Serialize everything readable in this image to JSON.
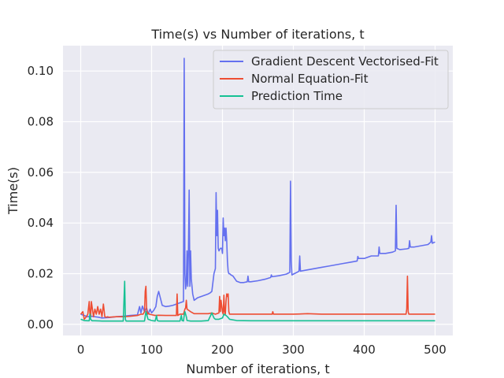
{
  "chart_data": {
    "type": "line",
    "title": "Time(s) vs Number of iterations, t",
    "xlabel": "Number of iterations, t",
    "ylabel": "Time(s)",
    "xlim": [
      -25,
      525
    ],
    "ylim": [
      -0.0044,
      0.11
    ],
    "xticks": [
      0,
      100,
      200,
      300,
      400,
      500
    ],
    "xtick_labels": [
      "0",
      "100",
      "200",
      "300",
      "400",
      "500"
    ],
    "yticks": [
      0.0,
      0.02,
      0.04,
      0.06,
      0.08,
      0.1
    ],
    "ytick_labels": [
      "0.00",
      "0.02",
      "0.04",
      "0.06",
      "0.08",
      "0.10"
    ],
    "grid": true,
    "legend_position": "top-right",
    "series": [
      {
        "name": "Gradient Descent Vectorised-Fit",
        "color": "#6470ef",
        "x": [
          0,
          5,
          10,
          15,
          20,
          25,
          30,
          40,
          50,
          60,
          70,
          80,
          83,
          85,
          87,
          90,
          93,
          95,
          98,
          100,
          103,
          106,
          108,
          110,
          115,
          120,
          125,
          130,
          135,
          140,
          143,
          145,
          146,
          147,
          148,
          149,
          150,
          151,
          152,
          153,
          154,
          155,
          156,
          158,
          160,
          165,
          170,
          175,
          180,
          183,
          185,
          188,
          190,
          191,
          192,
          193,
          194,
          195,
          197,
          199,
          200,
          201,
          202,
          203,
          204,
          205,
          206,
          207,
          208,
          209,
          210,
          212,
          215,
          220,
          225,
          230,
          235,
          236,
          237,
          240,
          250,
          260,
          268,
          269,
          270,
          280,
          290,
          295,
          296,
          297,
          298,
          300,
          305,
          308,
          309,
          310,
          320,
          330,
          340,
          350,
          360,
          370,
          380,
          390,
          391,
          392,
          400,
          410,
          420,
          421,
          422,
          430,
          440,
          444,
          445,
          446,
          450,
          460,
          463,
          464,
          465,
          470,
          480,
          490,
          494,
          495,
          496,
          500
        ],
        "y": [
          0.004,
          0.0035,
          0.003,
          0.0032,
          0.003,
          0.0028,
          0.0025,
          0.0027,
          0.003,
          0.0032,
          0.0035,
          0.0037,
          0.007,
          0.0045,
          0.0072,
          0.005,
          0.0065,
          0.004,
          0.006,
          0.0045,
          0.0055,
          0.007,
          0.011,
          0.013,
          0.0075,
          0.007,
          0.0072,
          0.0075,
          0.008,
          0.0085,
          0.0088,
          0.009,
          0.105,
          0.02,
          0.014,
          0.016,
          0.029,
          0.015,
          0.029,
          0.053,
          0.015,
          0.029,
          0.018,
          0.012,
          0.0095,
          0.0105,
          0.011,
          0.0115,
          0.012,
          0.0125,
          0.013,
          0.02,
          0.022,
          0.052,
          0.035,
          0.045,
          0.03,
          0.029,
          0.03,
          0.03,
          0.028,
          0.042,
          0.035,
          0.038,
          0.033,
          0.038,
          0.033,
          0.025,
          0.021,
          0.02,
          0.02,
          0.0195,
          0.019,
          0.017,
          0.0165,
          0.0165,
          0.0168,
          0.019,
          0.0168,
          0.0168,
          0.0172,
          0.0178,
          0.0185,
          0.0195,
          0.0188,
          0.0192,
          0.0198,
          0.0205,
          0.0565,
          0.025,
          0.0195,
          0.0198,
          0.0205,
          0.021,
          0.027,
          0.021,
          0.0215,
          0.022,
          0.0225,
          0.023,
          0.0235,
          0.024,
          0.0245,
          0.025,
          0.0268,
          0.026,
          0.026,
          0.027,
          0.027,
          0.0305,
          0.028,
          0.028,
          0.0285,
          0.029,
          0.047,
          0.03,
          0.0295,
          0.0298,
          0.03,
          0.033,
          0.0305,
          0.0305,
          0.031,
          0.0315,
          0.0325,
          0.035,
          0.032,
          0.0325
        ]
      },
      {
        "name": "Normal Equation-Fit",
        "color": "#ee4d33",
        "x": [
          0,
          3,
          5,
          8,
          10,
          12,
          13,
          14,
          15,
          17,
          18,
          20,
          22,
          24,
          26,
          28,
          30,
          32,
          34,
          36,
          38,
          40,
          50,
          60,
          70,
          80,
          85,
          88,
          90,
          91,
          92,
          93,
          94,
          95,
          97,
          100,
          105,
          110,
          120,
          130,
          135,
          136,
          137,
          140,
          145,
          147,
          148,
          149,
          150,
          155,
          160,
          170,
          180,
          185,
          190,
          195,
          196,
          197,
          198,
          200,
          201,
          202,
          203,
          204,
          205,
          206,
          207,
          208,
          209,
          210,
          220,
          230,
          240,
          260,
          270,
          271,
          272,
          280,
          300,
          320,
          340,
          360,
          380,
          400,
          420,
          440,
          455,
          459,
          460,
          461,
          462,
          463,
          480,
          500
        ],
        "y": [
          0.004,
          0.005,
          0.002,
          0.003,
          0.004,
          0.009,
          0.004,
          0.003,
          0.009,
          0.005,
          0.003,
          0.006,
          0.004,
          0.007,
          0.004,
          0.006,
          0.003,
          0.008,
          0.003,
          0.0028,
          0.003,
          0.0028,
          0.003,
          0.003,
          0.0032,
          0.0035,
          0.004,
          0.004,
          0.005,
          0.013,
          0.015,
          0.006,
          0.004,
          0.0045,
          0.004,
          0.0038,
          0.0035,
          0.0036,
          0.0035,
          0.0035,
          0.0035,
          0.012,
          0.0035,
          0.004,
          0.004,
          0.006,
          0.0065,
          0.0095,
          0.006,
          0.005,
          0.0042,
          0.0042,
          0.0042,
          0.0045,
          0.004,
          0.0045,
          0.011,
          0.005,
          0.0095,
          0.005,
          0.004,
          0.0115,
          0.005,
          0.004,
          0.009,
          0.012,
          0.011,
          0.012,
          0.005,
          0.004,
          0.004,
          0.004,
          0.004,
          0.004,
          0.004,
          0.005,
          0.004,
          0.004,
          0.004,
          0.0042,
          0.004,
          0.004,
          0.004,
          0.004,
          0.004,
          0.004,
          0.004,
          0.004,
          0.006,
          0.019,
          0.005,
          0.004,
          0.004,
          0.004
        ]
      },
      {
        "name": "Prediction Time",
        "color": "#15c193",
        "x": [
          0,
          5,
          10,
          12,
          13,
          14,
          16,
          20,
          30,
          40,
          50,
          60,
          61,
          62,
          63,
          64,
          65,
          70,
          80,
          85,
          90,
          92,
          95,
          100,
          105,
          107,
          108,
          110,
          120,
          130,
          140,
          142,
          143,
          145,
          146,
          147,
          148,
          149,
          150,
          155,
          160,
          170,
          180,
          185,
          188,
          190,
          195,
          200,
          202,
          205,
          207,
          210,
          220,
          240,
          260,
          280,
          300,
          340,
          380,
          420,
          460,
          500
        ],
        "y": [
          0.002,
          0.0015,
          0.0014,
          0.0014,
          0.004,
          0.002,
          0.0014,
          0.0014,
          0.0013,
          0.0013,
          0.0013,
          0.0013,
          0.009,
          0.017,
          0.002,
          0.0013,
          0.0013,
          0.0013,
          0.0013,
          0.0013,
          0.0013,
          0.005,
          0.002,
          0.0015,
          0.0013,
          0.0035,
          0.0015,
          0.0013,
          0.0013,
          0.0013,
          0.0013,
          0.0035,
          0.0015,
          0.0013,
          0.0035,
          0.005,
          0.004,
          0.003,
          0.0015,
          0.0013,
          0.0013,
          0.0013,
          0.0015,
          0.0045,
          0.0025,
          0.002,
          0.002,
          0.0025,
          0.004,
          0.0035,
          0.003,
          0.002,
          0.0015,
          0.0014,
          0.0014,
          0.0014,
          0.0014,
          0.0014,
          0.0014,
          0.0014,
          0.0014,
          0.0014
        ]
      }
    ]
  }
}
